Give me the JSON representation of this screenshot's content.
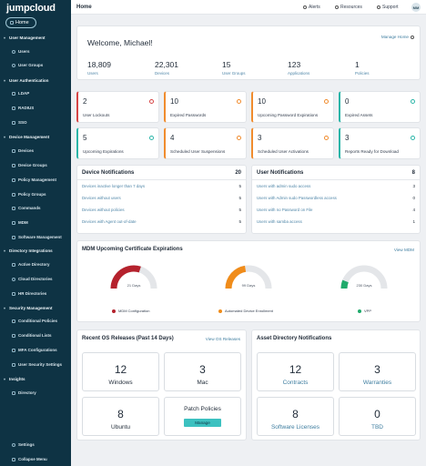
{
  "sidebar": {
    "logo": "jumpcloud",
    "home": "Home",
    "sections": [
      {
        "title": "User Management",
        "items": [
          "Users",
          "User Groups"
        ]
      },
      {
        "title": "User Authentication",
        "items": [
          "LDAP",
          "RADIUS",
          "SSO"
        ]
      },
      {
        "title": "Device Management",
        "items": [
          "Devices",
          "Device Groups",
          "Policy Management",
          "Policy Groups",
          "Commands",
          "MDM",
          "Software Management"
        ]
      },
      {
        "title": "Directory Integrations",
        "items": [
          "Active Directory",
          "Cloud Directories",
          "HR Directories"
        ]
      },
      {
        "title": "Security Management",
        "items": [
          "Conditional Policies",
          "Conditional Lists",
          "MFA Configurations",
          "User Security Settings"
        ]
      },
      {
        "title": "Insights",
        "items": [
          "Directory"
        ]
      }
    ],
    "footer": [
      "Settings",
      "Collapse Menu"
    ]
  },
  "topbar": {
    "title": "Home",
    "alerts": "Alerts",
    "resources": "Resources",
    "support": "Support",
    "avatar": "MM"
  },
  "welcome": {
    "title": "Welcome, Michael!",
    "manage_home": "Manage Home",
    "stats": [
      {
        "value": "18,809",
        "label": "Users"
      },
      {
        "value": "22,301",
        "label": "Devices"
      },
      {
        "value": "15",
        "label": "User Groups"
      },
      {
        "value": "123",
        "label": "Applications"
      },
      {
        "value": "1",
        "label": "Policies"
      }
    ]
  },
  "metrics": [
    {
      "value": "2",
      "label": "User Lockouts",
      "color": "#d64545"
    },
    {
      "value": "10",
      "label": "Expired Passwords",
      "color": "#f08c2e"
    },
    {
      "value": "10",
      "label": "Upcoming Password Expirations",
      "color": "#f08c2e"
    },
    {
      "value": "0",
      "label": "Expired Assets",
      "color": "#2bb5a8"
    },
    {
      "value": "5",
      "label": "Upcoming Expirations",
      "color": "#2bb5a8"
    },
    {
      "value": "4",
      "label": "Scheduled User Suspensions",
      "color": "#f08c2e"
    },
    {
      "value": "3",
      "label": "Scheduled User Activations",
      "color": "#f08c2e"
    },
    {
      "value": "3",
      "label": "Reports Ready for Download",
      "color": "#2bb5a8"
    }
  ],
  "device_notifications": {
    "title": "Device Notifications",
    "count": "20",
    "rows": [
      {
        "label": "Devices inactive longer than 7 days",
        "count": "5"
      },
      {
        "label": "Devices without users",
        "count": "5"
      },
      {
        "label": "Devices without policies",
        "count": "5"
      },
      {
        "label": "Devices with Agent out-of-date",
        "count": "5"
      }
    ]
  },
  "user_notifications": {
    "title": "User Notifications",
    "count": "8",
    "rows": [
      {
        "label": "Users with admin sudo access",
        "count": "3"
      },
      {
        "label": "Users with Admin sudo Passwordless access",
        "count": "0"
      },
      {
        "label": "Users with no Password on File",
        "count": "4"
      },
      {
        "label": "Users with samba access",
        "count": "1"
      }
    ]
  },
  "mdm": {
    "title": "MDM Upcoming Certificate Expirations",
    "view": "View MDM",
    "gauges": [
      {
        "days_label": "21 Days",
        "legend": "MDM Configuration",
        "color": "#b5222d",
        "fraction": 0.6
      },
      {
        "days_label": "99 Days",
        "legend": "Automated Device Enrollment",
        "color": "#f08c1a",
        "fraction": 0.45
      },
      {
        "days_label": "230 Days",
        "legend": "VPP",
        "color": "#1faa6b",
        "fraction": 0.12
      }
    ]
  },
  "os_releases": {
    "title": "Recent OS Releases (Past 14 Days)",
    "view": "View OS Releases",
    "tiles": [
      {
        "value": "12",
        "label": "Windows"
      },
      {
        "value": "3",
        "label": "Mac"
      },
      {
        "value": "8",
        "label": "Ubuntu"
      }
    ],
    "patch": {
      "label": "Patch Policies",
      "button": "Manage"
    }
  },
  "asset_notifications": {
    "title": "Asset Directory Notifications",
    "tiles": [
      {
        "value": "12",
        "label": "Contracts"
      },
      {
        "value": "3",
        "label": "Warranties"
      },
      {
        "value": "8",
        "label": "Software Licenses"
      },
      {
        "value": "0",
        "label": "TBD"
      }
    ]
  }
}
